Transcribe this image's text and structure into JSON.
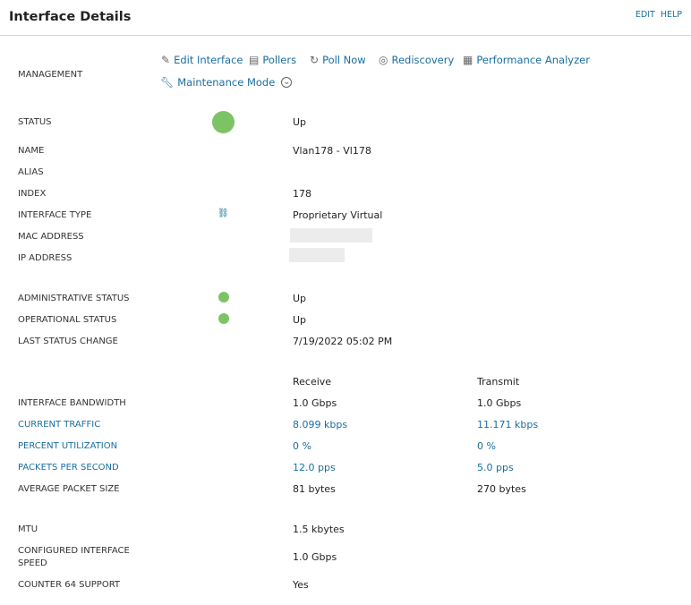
{
  "header": {
    "title": "Interface Details",
    "edit": "EDIT",
    "help": "HELP"
  },
  "management": {
    "label": "MANAGEMENT",
    "actions": [
      {
        "label": "Edit Interface",
        "icon": "pencil-icon"
      },
      {
        "label": "Pollers",
        "icon": "pollers-icon"
      },
      {
        "label": "Poll Now",
        "icon": "refresh-icon"
      },
      {
        "label": "Rediscovery",
        "icon": "rediscovery-icon"
      },
      {
        "label": "Performance Analyzer",
        "icon": "chart-icon"
      },
      {
        "label": "Maintenance Mode",
        "icon": "wrench-icon"
      }
    ]
  },
  "status_color": "#7cc366",
  "rows": {
    "status": {
      "label": "STATUS",
      "value": "Up"
    },
    "name": {
      "label": "NAME",
      "value": "Vlan178 - Vl178"
    },
    "alias": {
      "label": "ALIAS"
    },
    "index": {
      "label": "INDEX",
      "value": "178"
    },
    "type": {
      "label": "INTERFACE TYPE",
      "value": "Proprietary Virtual"
    },
    "mac": {
      "label": "MAC ADDRESS"
    },
    "ip": {
      "label": "IP ADDRESS"
    },
    "admin": {
      "label": "ADMINISTRATIVE STATUS",
      "value": "Up"
    },
    "oper": {
      "label": "OPERATIONAL STATUS",
      "value": "Up"
    },
    "last": {
      "label": "LAST STATUS CHANGE",
      "value": "7/19/2022 05:02 PM"
    }
  },
  "traffic": {
    "receive": "Receive",
    "transmit": "Transmit",
    "rows": [
      {
        "label": "INTERFACE BANDWIDTH",
        "rx": "1.0 Gbps",
        "tx": "1.0 Gbps",
        "link": false
      },
      {
        "label": "CURRENT TRAFFIC",
        "rx": "8.099 kbps",
        "tx": "11.171 kbps",
        "link": true
      },
      {
        "label": "PERCENT UTILIZATION",
        "rx": "0 %",
        "tx": "0 %",
        "link": true
      },
      {
        "label": "PACKETS PER SECOND",
        "rx": "12.0 pps",
        "tx": "5.0 pps",
        "link": true
      },
      {
        "label": "AVERAGE PACKET SIZE",
        "rx": "81 bytes",
        "tx": "270 bytes",
        "link": false
      }
    ]
  },
  "misc": {
    "mtu": {
      "label": "MTU",
      "value": "1.5 kbytes"
    },
    "speed": {
      "label1": "CONFIGURED INTERFACE",
      "label2": "SPEED",
      "value": "1.0 Gbps"
    },
    "counter": {
      "label": "COUNTER 64 SUPPORT",
      "value": "Yes"
    }
  }
}
